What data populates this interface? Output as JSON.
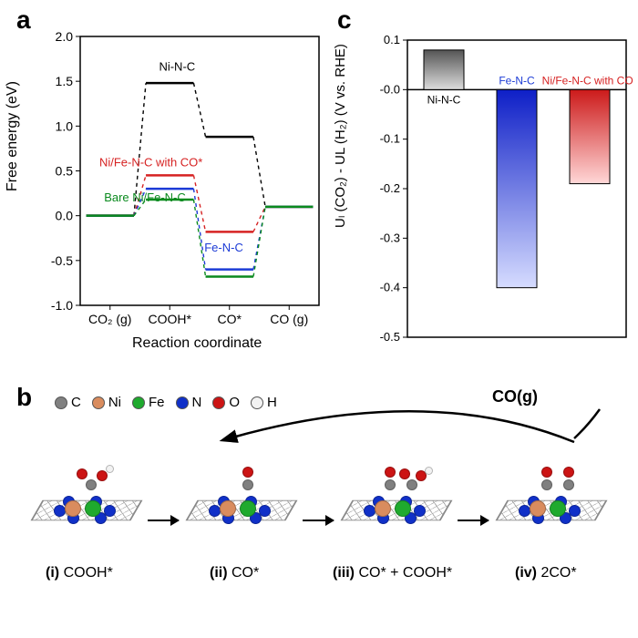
{
  "panels": {
    "a": "a",
    "b": "b",
    "c": "c"
  },
  "panelA": {
    "type": "line-step",
    "xlabel": "Reaction coordinate",
    "ylabel": "Free energy (eV)",
    "ylim": [
      -1.0,
      2.0
    ],
    "ytick_step": 0.5,
    "xticks": [
      "CO₂ (g)",
      "COOH*",
      "CO*",
      "CO (g)"
    ],
    "label_fontsize": 16,
    "tick_fontsize": 14,
    "background_color": "#ffffff",
    "axis_color": "#000000",
    "plateau_half": 0.1,
    "series": [
      {
        "name": "Ni-N-C",
        "color": "#000000",
        "values": [
          0.0,
          1.48,
          0.88,
          0.1
        ],
        "label_pos": {
          "x": 0.33,
          "y": 1.62
        }
      },
      {
        "name": "Ni/Fe-N-C with CO*",
        "color": "#d62222",
        "values": [
          0.0,
          0.45,
          -0.18,
          0.1
        ],
        "label_pos": {
          "x": 0.08,
          "y": 0.55
        }
      },
      {
        "name": "Fe-N-C",
        "color": "#1c3bd6",
        "values": [
          0.0,
          0.3,
          -0.6,
          0.1
        ],
        "label_pos": {
          "x": 0.52,
          "y": -0.4
        }
      },
      {
        "name": "Bare Ni/Fe-N-C",
        "color": "#0a8a1e",
        "values": [
          0.0,
          0.18,
          -0.68,
          0.1
        ],
        "label_pos": {
          "x": 0.1,
          "y": 0.16
        }
      }
    ],
    "connector_dash": "4,4",
    "line_width": 2.5
  },
  "panelC": {
    "type": "bar",
    "ylabel": "Uₗ (CO₂) - UL (H₂) (V vs. RHE)",
    "ylim": [
      -0.5,
      0.1
    ],
    "ytick_step": 0.1,
    "label_fontsize": 15,
    "tick_fontsize": 13,
    "background_color": "#ffffff",
    "axis_color": "#000000",
    "bar_width": 0.55,
    "baseline": 0.0,
    "bars": [
      {
        "name": "Ni-N-C",
        "value": 0.08,
        "color": "#9e9e9e",
        "grad_top": "#555555",
        "grad_bottom": "#dddddd",
        "label_color": "#000000"
      },
      {
        "name": "Fe-N-C",
        "value": -0.4,
        "color": "#1c3bd6",
        "grad_top": "#0e1fc7",
        "grad_bottom": "#d6dcff",
        "label_color": "#1c3bd6"
      },
      {
        "name": "Ni/Fe-N-C with CO*",
        "value": -0.19,
        "color": "#d62222",
        "grad_top": "#cc1a1a",
        "grad_bottom": "#ffd7d7",
        "label_color": "#d62222"
      }
    ]
  },
  "panelB": {
    "legend": [
      {
        "name": "C",
        "color": "#808080"
      },
      {
        "name": "Ni",
        "color": "#d98c5e"
      },
      {
        "name": "Fe",
        "color": "#1faa2e"
      },
      {
        "name": "N",
        "color": "#1030c8"
      },
      {
        "name": "O",
        "color": "#cc1414"
      },
      {
        "name": "H",
        "color": "#f2f2f2"
      }
    ],
    "product_label": "CO(g)",
    "states": [
      {
        "idx": "(i)",
        "name": "COOH*"
      },
      {
        "idx": "(ii)",
        "name": "CO*"
      },
      {
        "idx": "(iii)",
        "name": "CO* + COOH*"
      },
      {
        "idx": "(iv)",
        "name": "2CO*"
      }
    ],
    "atom_colors": {
      "C": "#808080",
      "Ni": "#d98c5e",
      "Fe": "#1faa2e",
      "N": "#1030c8",
      "O": "#cc1414",
      "H": "#f2f2f2"
    },
    "ball_sizes": {
      "metal": 18,
      "N": 13,
      "C": 12,
      "O": 12,
      "H": 9
    }
  }
}
